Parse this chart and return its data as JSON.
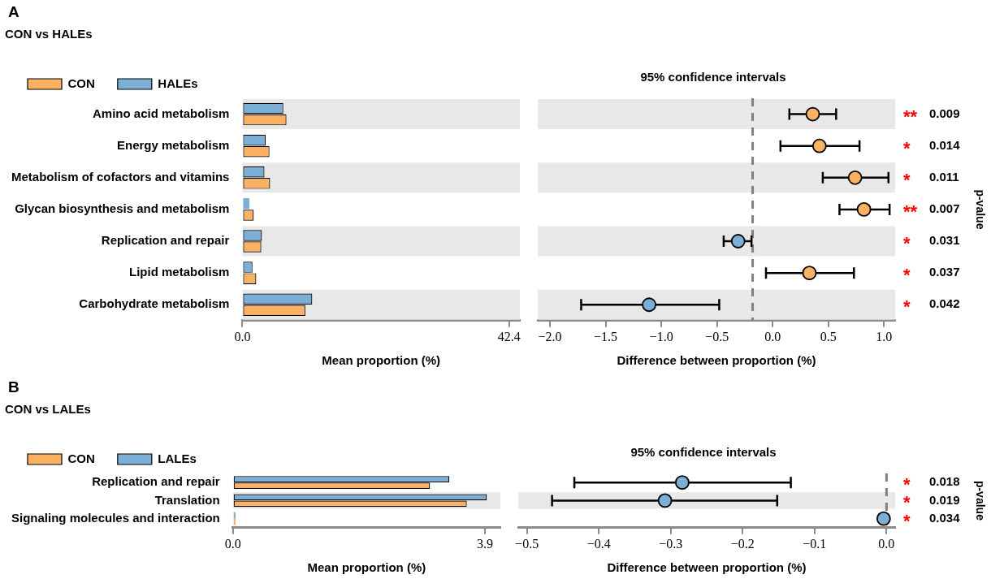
{
  "chart_data": [
    {
      "type": "bar",
      "orientation": "horizontal",
      "title": "CON vs HALEs",
      "xlabel": "Mean proportion (%)",
      "legend": "top left",
      "annotations": [
        "A"
      ],
      "categories": [
        "Amino acid metabolism",
        "Energy metabolism",
        "Metabolism of cofactors and vitamins",
        "Glycan biosynthesis and metabolism",
        "Replication and repair",
        "Lipid metabolism",
        "Carbohydrate metabolism"
      ],
      "series": [
        {
          "name": "HALEs",
          "color": "#7bafd6",
          "values": [
            6.5,
            3.7,
            3.5,
            1.1,
            3.1,
            1.6,
            11.1
          ]
        },
        {
          "name": "CON",
          "color": "#fbb162",
          "values": [
            7.0,
            4.3,
            4.4,
            1.8,
            3.0,
            2.2,
            10.0
          ]
        }
      ],
      "xlim": [
        0,
        44.1
      ],
      "xticks": [
        {
          "value": 0,
          "label": "0.0"
        },
        42.4
      ],
      "bands": [
        {
          "axis": "y",
          "from": "Amino acid metabolism",
          "to": "Amino acid metabolism",
          "color": "#e8e8e8"
        },
        {
          "axis": "y",
          "from": "Metabolism of cofactors and vitamins",
          "to": "Metabolism of cofactors and vitamins",
          "color": "#e8e8e8"
        },
        {
          "axis": "y",
          "from": "Replication and repair",
          "to": "Replication and repair",
          "color": "#e8e8e8"
        },
        {
          "axis": "y",
          "from": "Carbohydrate metabolism",
          "to": "Carbohydrate metabolism",
          "color": "#e8e8e8"
        }
      ]
    },
    {
      "type": "scatter",
      "orientation": "horizontal",
      "title": "95% confidence intervals",
      "xlabel": "Difference between proportion (%)",
      "y2label": "p-value",
      "marker": "circle",
      "tick_labels": "x",
      "categories": [
        "Amino acid metabolism",
        "Energy metabolism",
        "Metabolism of cofactors and vitamins",
        "Glycan biosynthesis and metabolism",
        "Replication and repair",
        "Lipid metabolism",
        "Carbohydrate metabolism"
      ],
      "series": [
        {
          "colors": [
            "#fbb162",
            "#fbb162",
            "#fbb162",
            "#fbb162",
            "#7bafd6",
            "#fbb162",
            "#7bafd6"
          ],
          "values": [
            0.36,
            0.42,
            0.74,
            0.82,
            -0.31,
            0.33,
            -1.11
          ],
          "errors": [
            [
              0.15,
              0.57
            ],
            [
              0.07,
              0.78
            ],
            [
              0.45,
              1.04
            ],
            [
              0.6,
              1.05
            ],
            [
              -0.44,
              -0.19
            ],
            [
              -0.06,
              0.73
            ],
            [
              -1.72,
              -0.48
            ]
          ]
        }
      ],
      "xlim": [
        -2.11,
        1.1
      ],
      "xticks": [
        {
          "value": -2,
          "label": "−2.0"
        },
        {
          "value": -1.5,
          "label": "−1.5"
        },
        {
          "value": -1,
          "label": "−1.0"
        },
        {
          "value": -0.5,
          "label": "−0.5"
        },
        {
          "value": 0,
          "label": "0.0"
        },
        {
          "value": 0.5,
          "label": "0.5"
        },
        {
          "value": 1,
          "label": "1.0"
        }
      ],
      "ref_lines": [
        {
          "axis": "x",
          "value": -0.18,
          "line_style": "dashed",
          "color": "#808080"
        }
      ],
      "bands": [
        {
          "axis": "y",
          "from": "Amino acid metabolism",
          "to": "Amino acid metabolism",
          "color": "#e8e8e8"
        },
        {
          "axis": "y",
          "from": "Metabolism of cofactors and vitamins",
          "to": "Metabolism of cofactors and vitamins",
          "color": "#e8e8e8"
        },
        {
          "axis": "y",
          "from": "Replication and repair",
          "to": "Replication and repair",
          "color": "#e8e8e8"
        },
        {
          "axis": "y",
          "from": "Carbohydrate metabolism",
          "to": "Carbohydrate metabolism",
          "color": "#e8e8e8"
        }
      ],
      "annotations": [
        "** 0.009",
        "* 0.014",
        "* 0.011",
        "** 0.007",
        "* 0.031",
        "* 0.037",
        "* 0.042"
      ]
    },
    {
      "type": "bar",
      "orientation": "horizontal",
      "title": "CON vs LALEs",
      "xlabel": "Mean proportion (%)",
      "legend": "top left",
      "annotations": [
        "B"
      ],
      "categories": [
        "Replication and repair",
        "Translation",
        "Signaling molecules and interaction"
      ],
      "series": [
        {
          "name": "LALEs",
          "color": "#7bafd6",
          "values": [
            3.35,
            3.93,
            0.04
          ]
        },
        {
          "name": "CON",
          "color": "#fbb162",
          "values": [
            3.05,
            3.62,
            0.04
          ]
        }
      ],
      "xlim": [
        0,
        4.14
      ],
      "xticks": [
        {
          "value": 0,
          "label": "0.0"
        },
        3.9
      ],
      "bands": [
        {
          "axis": "y",
          "from": "Translation",
          "to": "Translation",
          "color": "#e8e8e8"
        }
      ]
    },
    {
      "type": "scatter",
      "orientation": "horizontal",
      "title": "95% confidence intervals",
      "xlabel": "Difference between proportion (%)",
      "y2label": "p-value",
      "marker": "circle",
      "tick_labels": "x",
      "categories": [
        "Replication and repair",
        "Translation",
        "Signaling molecules and interaction"
      ],
      "series": [
        {
          "colors": [
            "#7bafd6",
            "#7bafd6",
            "#7bafd6"
          ],
          "values": [
            -0.284,
            -0.308,
            -0.004
          ],
          "errors": [
            [
              -0.434,
              -0.133
            ],
            [
              -0.465,
              -0.152
            ],
            null
          ]
        }
      ],
      "xlim": [
        -0.512,
        0.012
      ],
      "xticks": [
        {
          "value": -0.5,
          "label": "−0.5"
        },
        {
          "value": -0.4,
          "label": "−0.4"
        },
        {
          "value": -0.3,
          "label": "−0.3"
        },
        {
          "value": -0.2,
          "label": "−0.2"
        },
        {
          "value": -0.1,
          "label": "−0.1"
        },
        {
          "value": 0,
          "label": "0.0"
        }
      ],
      "ref_lines": [
        {
          "axis": "x",
          "value": 0,
          "line_style": "dashed",
          "color": "#808080"
        }
      ],
      "bands": [
        {
          "axis": "y",
          "from": "Translation",
          "to": "Translation",
          "color": "#e8e8e8"
        }
      ],
      "annotations": [
        "* 0.018",
        "* 0.019",
        "* 0.034"
      ]
    }
  ]
}
